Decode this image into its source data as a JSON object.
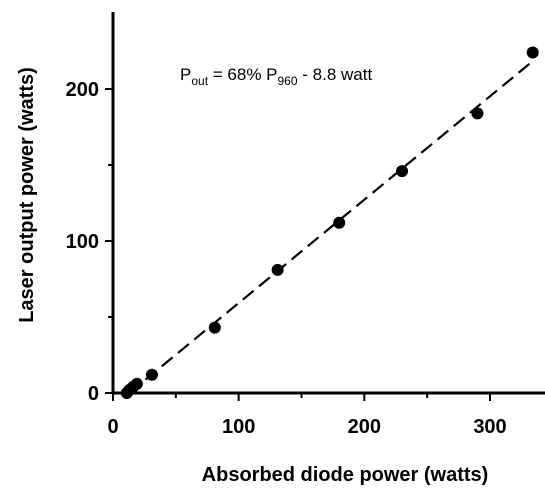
{
  "chart_data": {
    "type": "scatter",
    "title": "",
    "xlabel": "Absorbed diode power (watts)",
    "ylabel": "Laser output power (watts)",
    "xlim": [
      0,
      340
    ],
    "ylim": [
      0,
      250
    ],
    "grid": false,
    "x_ticks": [
      0,
      100,
      200,
      300
    ],
    "y_ticks": [
      0,
      100,
      200
    ],
    "x_minor_ticks": [
      50,
      150,
      250
    ],
    "y_minor_ticks": [
      50,
      150
    ],
    "series": [
      {
        "marker": "circle",
        "color": "#000000",
        "points": [
          {
            "x": 11,
            "y": 0
          },
          {
            "x": 13,
            "y": 2
          },
          {
            "x": 16,
            "y": 4
          },
          {
            "x": 19,
            "y": 6
          },
          {
            "x": 31,
            "y": 12
          },
          {
            "x": 81,
            "y": 43
          },
          {
            "x": 131,
            "y": 81
          },
          {
            "x": 180,
            "y": 112
          },
          {
            "x": 230,
            "y": 146
          },
          {
            "x": 290,
            "y": 184
          },
          {
            "x": 334,
            "y": 224
          }
        ]
      }
    ],
    "fit_line": {
      "style": "dashed",
      "color": "#000000",
      "slope": 0.68,
      "intercept": -8.8,
      "x_start": 13,
      "x_end": 334
    },
    "annotation": {
      "p": "P",
      "out_sub": "out",
      "mid": " = 68% P",
      "sub960": "960",
      "tail": " - 8.8 watt"
    }
  }
}
